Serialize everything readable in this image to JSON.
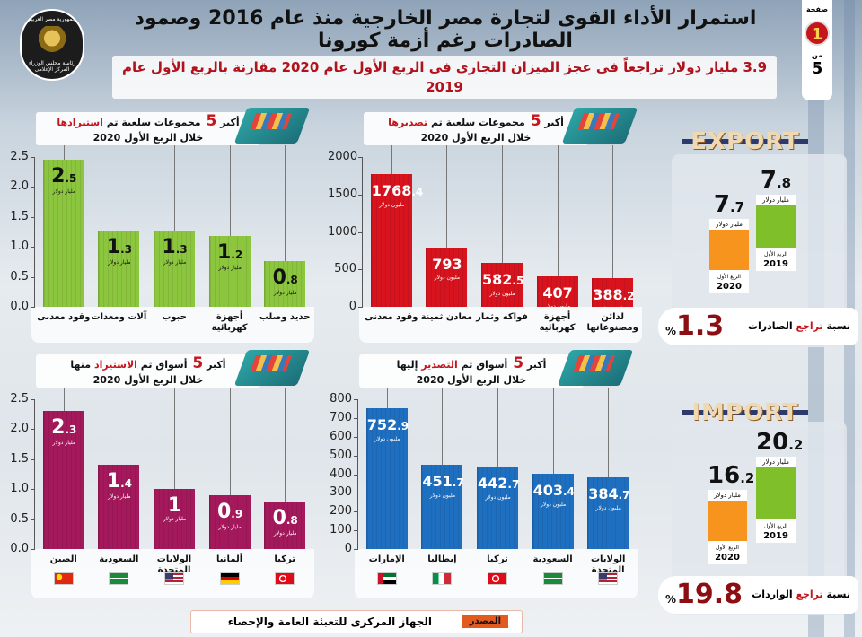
{
  "header": {
    "title": "استمرار الأداء القوى لتجارة مصر الخارجية منذ عام 2016 وصمود الصادرات رغم أزمة كورونا",
    "subtitle": "3.9 مليار دولار تراجعاً فى عجز الميزان التجارى فى الربع الأول عام 2020 مقارنة بالربع الأول عام 2019",
    "logo_text": [
      "جمهورية مصر العربية",
      "رئاسة مجلس الوزراء",
      "المركز الإعلامى"
    ],
    "page_label": "صفحة",
    "page_current": "1",
    "page_of": "من",
    "page_total": "5"
  },
  "chart_data": [
    {
      "type": "bar",
      "id": "imports-commodities",
      "title_pre": "أكبر",
      "title_num": "5",
      "title_mid": "مجموعات سلعية تم",
      "title_hl": "استيرادها",
      "title_post": "",
      "subtitle": "خلال الربع الأول 2020",
      "categories": [
        "وقود معدنى",
        "آلات ومعدات",
        "حبوب",
        "أجهزة كهربائية",
        "حديد وصلب"
      ],
      "values": [
        2.5,
        1.3,
        1.3,
        1.2,
        0.8
      ],
      "plot_values": [
        2.46,
        1.27,
        1.27,
        1.18,
        0.77
      ],
      "unit": "مليار دولار",
      "yticks": [
        "0.0",
        "0.5",
        "1.0",
        "1.5",
        "2.0",
        "2.5"
      ],
      "ylim": [
        0,
        2.5
      ],
      "color": "#8cc63f",
      "text_color": "#111111"
    },
    {
      "type": "bar",
      "id": "exports-commodities",
      "title_pre": "أكبر",
      "title_num": "5",
      "title_mid": "مجموعات سلعية تم",
      "title_hl": "تصديرها",
      "title_post": "",
      "subtitle": "خلال الربع الأول 2020",
      "categories": [
        "وقود معدنى",
        "معادن ثمينة",
        "فواكه وثمار",
        "أجهزة كهربائية",
        "لدائن ومصنوعاتها"
      ],
      "values": [
        1768.4,
        793,
        582.5,
        407,
        388.2
      ],
      "unit": "مليون دولار",
      "yticks": [
        "0",
        "500",
        "1000",
        "1500",
        "2000"
      ],
      "ylim": [
        0,
        2000
      ],
      "color": "#d7141e",
      "text_color": "#ffffff"
    },
    {
      "type": "bar",
      "id": "imports-markets",
      "title_pre": "أكبر",
      "title_num": "5",
      "title_mid": "أسواق تم",
      "title_hl": "الاستيراد",
      "title_post": "منها",
      "subtitle": "خلال الربع الأول 2020",
      "categories": [
        "الصين",
        "السعودية",
        "الولايات المتحدة",
        "ألمانيا",
        "تركيا"
      ],
      "flags": [
        "china-flag",
        "saudi-flag",
        "usa-flag",
        "germany-flag",
        "turkey-flag"
      ],
      "values": [
        2.3,
        1.4,
        1,
        0.9,
        0.8
      ],
      "unit": "مليار دولار",
      "yticks": [
        "0.0",
        "0.5",
        "1.0",
        "1.5",
        "2.0",
        "2.5"
      ],
      "ylim": [
        0,
        2.5
      ],
      "color": "#a3195b",
      "text_color": "#ffffff"
    },
    {
      "type": "bar",
      "id": "exports-markets",
      "title_pre": "أكبر",
      "title_num": "5",
      "title_mid": "أسواق تم",
      "title_hl": "التصدير",
      "title_post": "إليها",
      "subtitle": "خلال الربع الأول 2020",
      "categories": [
        "الإمارات",
        "إيطاليا",
        "تركيا",
        "السعودية",
        "الولايات المتحدة"
      ],
      "flags": [
        "uae-flag",
        "italy-flag",
        "turkey-flag",
        "saudi-flag",
        "usa-flag"
      ],
      "values": [
        752.9,
        451.7,
        442.7,
        403.4,
        384.7
      ],
      "unit": "مليون دولار",
      "yticks": [
        "0",
        "100",
        "200",
        "300",
        "400",
        "500",
        "600",
        "700",
        "800"
      ],
      "ylim": [
        0,
        800
      ],
      "color": "#1f6fc0",
      "text_color": "#ffffff"
    }
  ],
  "export_card": {
    "banner": "EXPORT",
    "v2020": "7.7",
    "v2019": "7.8",
    "unit": "مليار دولار",
    "quarter": "الربع الأول",
    "y2020": "2020",
    "y2019": "2019",
    "pct_value": "1.3",
    "pct_sign": "%",
    "pct_pre": "نسبة",
    "pct_hl": "تراجع",
    "pct_post": "الصادرات"
  },
  "import_card": {
    "banner": "IMPORT",
    "v2020": "16.2",
    "v2019": "20.2",
    "unit": "مليار دولار",
    "quarter": "الربع الأول",
    "y2020": "2020",
    "y2019": "2019",
    "pct_value": "19.8",
    "pct_sign": "%",
    "pct_pre": "نسبة",
    "pct_hl": "تراجع",
    "pct_post": "الواردات"
  },
  "source": {
    "label": "المصدر",
    "text": "الجهاز المركزى للتعبئة العامة والإحصاء"
  },
  "colors": {
    "orange": "#f7941d",
    "green": "#8cc63f",
    "red": "#c4161c"
  }
}
